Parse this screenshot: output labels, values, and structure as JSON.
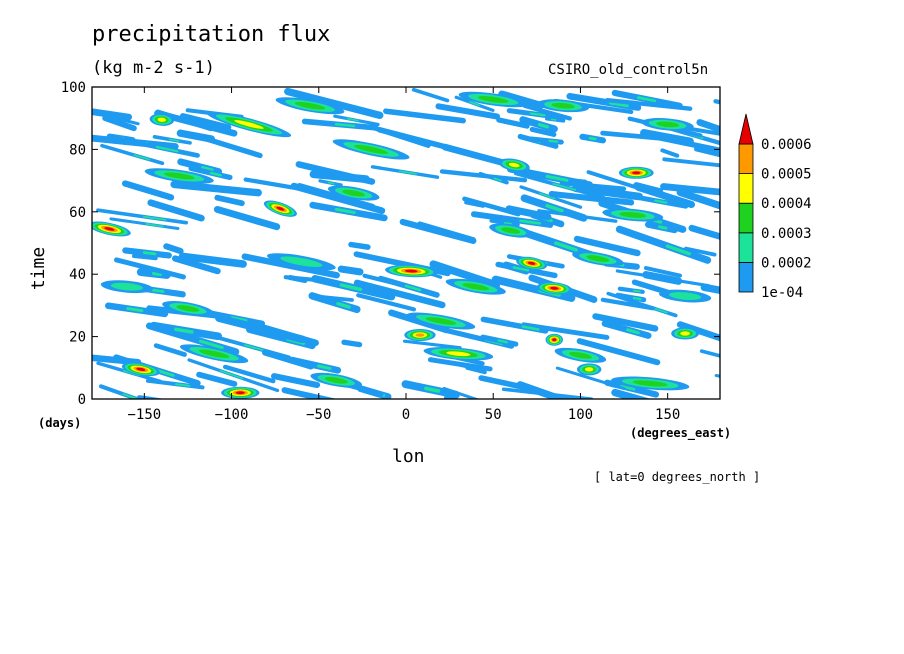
{
  "title": "precipitation flux",
  "units": "(kg m-2 s-1)",
  "dataset": "CSIRO_old_control5n",
  "note": "[ lat=0 degrees_north ]",
  "chart_data": {
    "type": "heatmap",
    "xlabel": "lon",
    "ylabel": "time",
    "x_units": "(degrees_east)",
    "y_units": "(days)",
    "xlim": [
      -180,
      180
    ],
    "ylim": [
      0,
      100
    ],
    "x_ticks": [
      -150,
      -100,
      -50,
      0,
      50,
      100,
      150
    ],
    "y_ticks": [
      0,
      20,
      40,
      60,
      80,
      100
    ],
    "colorbar": {
      "levels": [
        0.0001,
        0.0002,
        0.0003,
        0.0004,
        0.0005,
        0.0006
      ],
      "labels": [
        "1e-04",
        "0.0002",
        "0.0003",
        "0.0004",
        "0.0005",
        "0.0006"
      ],
      "colors": [
        "#1e9bf0",
        "#1de39a",
        "#1fd21f",
        "#ffff00",
        "#ff9900",
        "#e60000"
      ],
      "extend": "max"
    },
    "features": [
      {
        "lon": -170,
        "t": 54.5,
        "level": 6,
        "len": 25,
        "tilt": -0.12
      },
      {
        "lon": -152,
        "t": 9.5,
        "level": 6,
        "len": 22,
        "tilt": -0.1
      },
      {
        "lon": -140,
        "t": 89.5,
        "level": 4,
        "len": 14,
        "tilt": -0.05
      },
      {
        "lon": -95,
        "t": 2,
        "level": 6,
        "len": 22,
        "tilt": 0
      },
      {
        "lon": -90,
        "t": 88,
        "level": 4,
        "len": 50,
        "tilt": -0.15
      },
      {
        "lon": -72,
        "t": 61,
        "level": 6,
        "len": 20,
        "tilt": -0.2
      },
      {
        "lon": -110,
        "t": 14.5,
        "level": 3,
        "len": 40,
        "tilt": -0.12
      },
      {
        "lon": -130,
        "t": 71.5,
        "level": 3,
        "len": 40,
        "tilt": -0.08
      },
      {
        "lon": -125,
        "t": 29,
        "level": 3,
        "len": 30,
        "tilt": -0.1
      },
      {
        "lon": -30,
        "t": 66,
        "level": 3,
        "len": 30,
        "tilt": -0.1
      },
      {
        "lon": -20,
        "t": 80,
        "level": 3,
        "len": 45,
        "tilt": -0.12
      },
      {
        "lon": 3,
        "t": 41,
        "level": 6,
        "len": 30,
        "tilt": -0.03
      },
      {
        "lon": 8,
        "t": 20.5,
        "level": 5,
        "len": 18,
        "tilt": 0
      },
      {
        "lon": 30,
        "t": 14.5,
        "level": 4,
        "len": 40,
        "tilt": -0.05
      },
      {
        "lon": 20,
        "t": 25,
        "level": 3,
        "len": 40,
        "tilt": -0.1
      },
      {
        "lon": 40,
        "t": 36,
        "level": 3,
        "len": 35,
        "tilt": -0.1
      },
      {
        "lon": 62,
        "t": 75,
        "level": 4,
        "len": 18,
        "tilt": -0.1
      },
      {
        "lon": 72,
        "t": 43.5,
        "level": 6,
        "len": 18,
        "tilt": -0.1
      },
      {
        "lon": 85,
        "t": 35.5,
        "level": 6,
        "len": 20,
        "tilt": -0.05
      },
      {
        "lon": 85,
        "t": 19,
        "level": 6,
        "len": 10,
        "tilt": 0
      },
      {
        "lon": 100,
        "t": 14,
        "level": 3,
        "len": 30,
        "tilt": -0.1
      },
      {
        "lon": 105,
        "t": 9.5,
        "level": 4,
        "len": 14,
        "tilt": 0
      },
      {
        "lon": 132,
        "t": 72.5,
        "level": 6,
        "len": 20,
        "tilt": 0
      },
      {
        "lon": 130,
        "t": 59,
        "level": 3,
        "len": 35,
        "tilt": -0.05
      },
      {
        "lon": 140,
        "t": 5,
        "level": 3,
        "len": 45,
        "tilt": -0.05
      },
      {
        "lon": 160,
        "t": 21,
        "level": 4,
        "len": 16,
        "tilt": 0
      },
      {
        "lon": 150,
        "t": 88,
        "level": 3,
        "len": 30,
        "tilt": -0.05
      },
      {
        "lon": -55,
        "t": 94,
        "level": 3,
        "len": 40,
        "tilt": -0.1
      },
      {
        "lon": 50,
        "t": 96,
        "level": 3,
        "len": 40,
        "tilt": -0.08
      },
      {
        "lon": 90,
        "t": 94,
        "level": 3,
        "len": 30,
        "tilt": -0.05
      },
      {
        "lon": -160,
        "t": 36,
        "level": 2,
        "len": 30,
        "tilt": -0.05
      },
      {
        "lon": -60,
        "t": 44,
        "level": 2,
        "len": 40,
        "tilt": -0.1
      },
      {
        "lon": 110,
        "t": 45,
        "level": 3,
        "len": 30,
        "tilt": -0.1
      },
      {
        "lon": 60,
        "t": 54,
        "level": 3,
        "len": 25,
        "tilt": -0.1
      },
      {
        "lon": -40,
        "t": 6,
        "level": 3,
        "len": 30,
        "tilt": -0.1
      },
      {
        "lon": 160,
        "t": 33,
        "level": 2,
        "len": 30,
        "tilt": -0.05
      }
    ]
  }
}
